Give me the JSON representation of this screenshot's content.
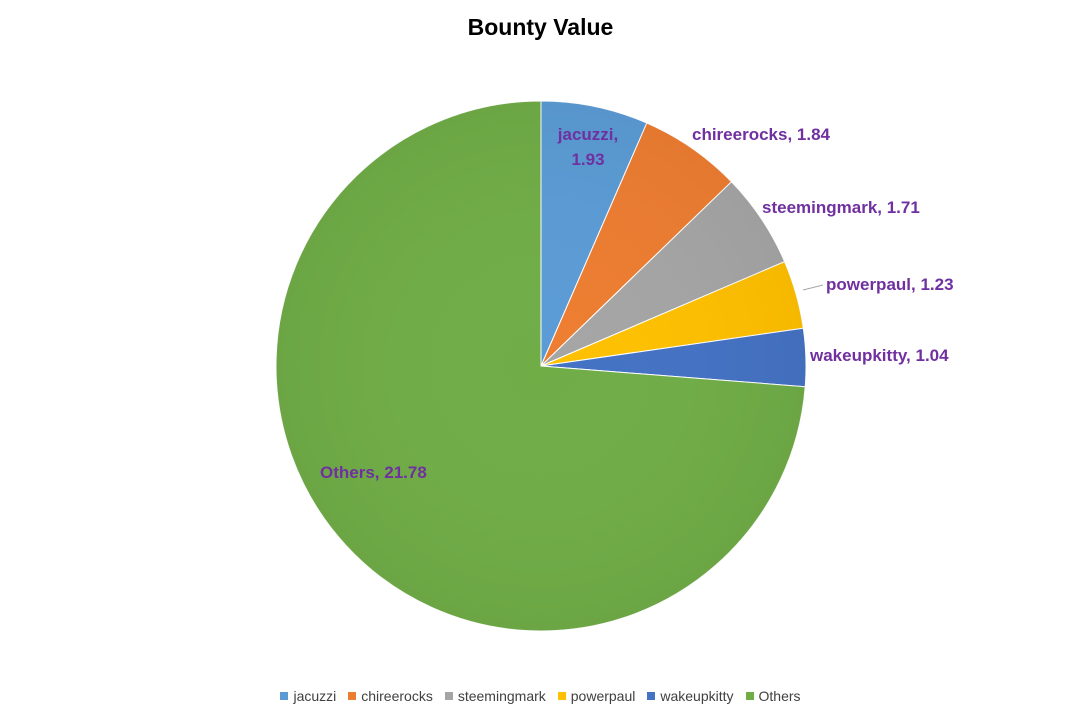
{
  "chart_data": {
    "type": "pie",
    "title": "Bounty Value",
    "legend_position": "bottom",
    "slices": [
      {
        "name": "jacuzzi",
        "value": 1.93,
        "color": "#5b9bd5",
        "label": "jacuzzi, 1.93"
      },
      {
        "name": "chireerocks",
        "value": 1.84,
        "color": "#ed7d31",
        "label": "chireerocks, 1.84"
      },
      {
        "name": "steemingmark",
        "value": 1.71,
        "color": "#a5a5a5",
        "label": "steemingmark, 1.71"
      },
      {
        "name": "powerpaul",
        "value": 1.23,
        "color": "#ffc000",
        "label": "powerpaul, 1.23"
      },
      {
        "name": "wakeupkitty",
        "value": 1.04,
        "color": "#4472c4",
        "label": "wakeupkitty, 1.04"
      },
      {
        "name": "Others",
        "value": 21.78,
        "color": "#70ad47",
        "label": "Others, 21.78"
      }
    ],
    "label_color": "#7030a0"
  }
}
